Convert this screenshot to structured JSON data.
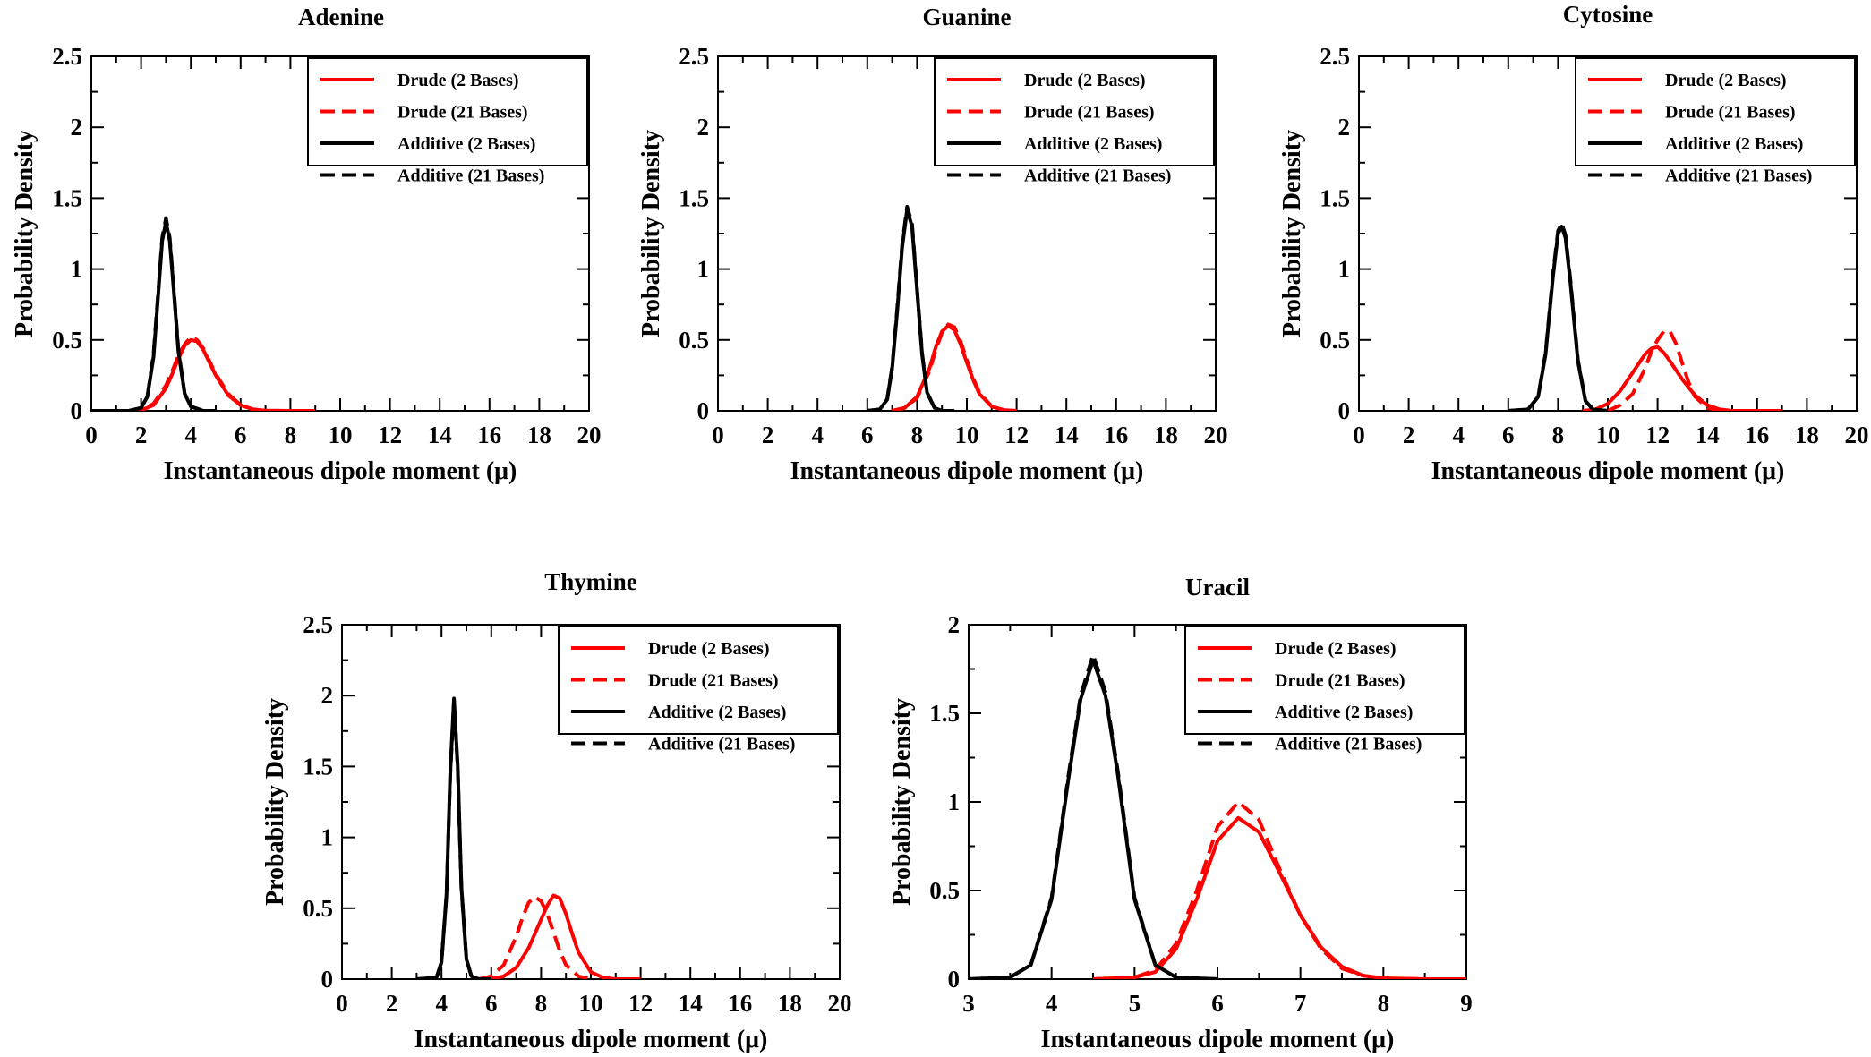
{
  "chart_data": [
    {
      "type": "line",
      "title": "Adenine",
      "xlabel": "Instantaneous dipole moment (μ)",
      "ylabel": "Probability Density",
      "xlim": [
        0,
        20
      ],
      "ylim": [
        0,
        2.5
      ],
      "xticks": [
        "0",
        "2",
        "4",
        "6",
        "8",
        "10",
        "12",
        "14",
        "16",
        "18",
        "20"
      ],
      "yticks": [
        "0",
        "0.5",
        "1",
        "1.5",
        "2",
        "2.5"
      ],
      "legend": "top-right",
      "series": [
        {
          "name": "Drude (2 Bases)",
          "color": "#ff0000",
          "style": "solid",
          "x": [
            1.5,
            2,
            2.5,
            3,
            3.25,
            3.5,
            3.75,
            4,
            4.25,
            4.5,
            4.75,
            5,
            5.5,
            6,
            6.5,
            7,
            8,
            9
          ],
          "y": [
            0,
            0.003,
            0.04,
            0.16,
            0.26,
            0.37,
            0.46,
            0.5,
            0.49,
            0.43,
            0.34,
            0.25,
            0.11,
            0.04,
            0.01,
            0.002,
            0,
            0
          ]
        },
        {
          "name": "Drude (21 Bases)",
          "color": "#ff0000",
          "style": "dashed",
          "x": [
            1.5,
            2,
            2.5,
            3,
            3.25,
            3.5,
            3.75,
            4,
            4.25,
            4.5,
            4.75,
            5,
            5.5,
            6,
            6.5,
            7,
            8
          ],
          "y": [
            0,
            0.005,
            0.05,
            0.18,
            0.28,
            0.39,
            0.47,
            0.52,
            0.5,
            0.44,
            0.35,
            0.26,
            0.12,
            0.04,
            0.01,
            0.002,
            0
          ]
        },
        {
          "name": "Additive (2 Bases)",
          "color": "#000000",
          "style": "solid",
          "x": [
            0,
            1.5,
            2,
            2.25,
            2.5,
            2.7,
            2.85,
            3,
            3.15,
            3.3,
            3.5,
            3.75,
            4,
            4.5,
            5
          ],
          "y": [
            0,
            0,
            0.02,
            0.1,
            0.38,
            0.85,
            1.2,
            1.33,
            1.2,
            0.88,
            0.42,
            0.12,
            0.03,
            0,
            0
          ]
        },
        {
          "name": "Additive (21 Bases)",
          "color": "#000000",
          "style": "dashed",
          "x": [
            0,
            1.5,
            2,
            2.25,
            2.5,
            2.7,
            2.85,
            3,
            3.15,
            3.3,
            3.5,
            3.75,
            4,
            4.5,
            5
          ],
          "y": [
            0,
            0,
            0.02,
            0.1,
            0.4,
            0.87,
            1.22,
            1.36,
            1.22,
            0.9,
            0.43,
            0.12,
            0.03,
            0,
            0
          ]
        }
      ]
    },
    {
      "type": "line",
      "title": "Guanine",
      "xlabel": "Instantaneous dipole moment (μ)",
      "ylabel": "Probability Density",
      "xlim": [
        0,
        20
      ],
      "ylim": [
        0,
        2.5
      ],
      "xticks": [
        "0",
        "2",
        "4",
        "6",
        "8",
        "10",
        "12",
        "14",
        "16",
        "18",
        "20"
      ],
      "yticks": [
        "0",
        "0.5",
        "1",
        "1.5",
        "2",
        "2.5"
      ],
      "legend": "top-right",
      "series": [
        {
          "name": "Drude (2 Bases)",
          "color": "#ff0000",
          "style": "solid",
          "x": [
            7,
            7.5,
            8,
            8.5,
            8.75,
            9,
            9.25,
            9.5,
            9.75,
            10,
            10.25,
            10.5,
            11,
            11.5,
            12
          ],
          "y": [
            0,
            0.02,
            0.1,
            0.3,
            0.45,
            0.56,
            0.6,
            0.57,
            0.47,
            0.34,
            0.22,
            0.12,
            0.03,
            0.005,
            0
          ]
        },
        {
          "name": "Drude (21 Bases)",
          "color": "#ff0000",
          "style": "dashed",
          "x": [
            7,
            7.5,
            8,
            8.5,
            8.75,
            9,
            9.25,
            9.5,
            9.75,
            10,
            10.25,
            10.5,
            11,
            11.5,
            12
          ],
          "y": [
            0,
            0.02,
            0.09,
            0.28,
            0.43,
            0.55,
            0.61,
            0.59,
            0.49,
            0.36,
            0.23,
            0.13,
            0.03,
            0.005,
            0
          ]
        },
        {
          "name": "Additive (2 Bases)",
          "color": "#000000",
          "style": "solid",
          "x": [
            6,
            6.5,
            6.8,
            7,
            7.2,
            7.4,
            7.6,
            7.8,
            8,
            8.2,
            8.4,
            8.7,
            9,
            9.5
          ],
          "y": [
            0,
            0.01,
            0.08,
            0.3,
            0.7,
            1.15,
            1.42,
            1.3,
            0.85,
            0.4,
            0.13,
            0.02,
            0,
            0
          ]
        },
        {
          "name": "Additive (21 Bases)",
          "color": "#000000",
          "style": "dashed",
          "x": [
            6,
            6.5,
            6.8,
            7,
            7.2,
            7.4,
            7.6,
            7.8,
            8,
            8.2,
            8.4,
            8.7,
            9,
            9.5
          ],
          "y": [
            0,
            0.01,
            0.08,
            0.31,
            0.72,
            1.17,
            1.44,
            1.32,
            0.86,
            0.41,
            0.13,
            0.02,
            0,
            0
          ]
        }
      ]
    },
    {
      "type": "line",
      "title": "Cytosine",
      "xlabel": "Instantaneous dipole moment (μ)",
      "ylabel": "Probability Density",
      "xlim": [
        0,
        20
      ],
      "ylim": [
        0,
        2.5
      ],
      "xticks": [
        "0",
        "2",
        "4",
        "6",
        "8",
        "10",
        "12",
        "14",
        "16",
        "18",
        "20"
      ],
      "yticks": [
        "0",
        "0.5",
        "1",
        "1.5",
        "2",
        "2.5"
      ],
      "legend": "top-right",
      "series": [
        {
          "name": "Drude (2 Bases)",
          "color": "#ff0000",
          "style": "solid",
          "x": [
            9,
            9.5,
            10,
            10.5,
            11,
            11.5,
            11.75,
            12,
            12.25,
            12.5,
            13,
            13.5,
            14,
            14.5,
            15,
            16,
            17
          ],
          "y": [
            0,
            0.01,
            0.05,
            0.14,
            0.27,
            0.4,
            0.44,
            0.45,
            0.41,
            0.35,
            0.22,
            0.11,
            0.04,
            0.01,
            0,
            0,
            0
          ]
        },
        {
          "name": "Drude (21 Bases)",
          "color": "#ff0000",
          "style": "dashed",
          "x": [
            10,
            10.5,
            11,
            11.5,
            11.75,
            12,
            12.25,
            12.5,
            12.75,
            13,
            13.25,
            13.5,
            14,
            14.5
          ],
          "y": [
            0,
            0.04,
            0.12,
            0.3,
            0.42,
            0.5,
            0.56,
            0.56,
            0.47,
            0.33,
            0.2,
            0.1,
            0.02,
            0
          ]
        },
        {
          "name": "Additive (2 Bases)",
          "color": "#000000",
          "style": "solid",
          "x": [
            6,
            6.8,
            7.2,
            7.5,
            7.8,
            8,
            8.15,
            8.3,
            8.5,
            8.8,
            9.1,
            9.4,
            10
          ],
          "y": [
            0,
            0.01,
            0.1,
            0.4,
            0.95,
            1.25,
            1.3,
            1.22,
            0.9,
            0.35,
            0.07,
            0.01,
            0
          ]
        },
        {
          "name": "Additive (21 Bases)",
          "color": "#000000",
          "style": "dashed",
          "x": [
            6,
            6.8,
            7.2,
            7.5,
            7.8,
            8,
            8.15,
            8.3,
            8.5,
            8.8,
            9.1,
            9.4,
            10
          ],
          "y": [
            0,
            0.01,
            0.1,
            0.41,
            0.97,
            1.27,
            1.32,
            1.24,
            0.92,
            0.36,
            0.07,
            0.01,
            0
          ]
        }
      ]
    },
    {
      "type": "line",
      "title": "Thymine",
      "xlabel": "Instantaneous dipole moment (μ)",
      "ylabel": "Probability Density",
      "xlim": [
        0,
        20
      ],
      "ylim": [
        0,
        2.5
      ],
      "xticks": [
        "0",
        "2",
        "4",
        "6",
        "8",
        "10",
        "12",
        "14",
        "16",
        "18",
        "20"
      ],
      "yticks": [
        "0",
        "0.5",
        "1",
        "1.5",
        "2",
        "2.5"
      ],
      "legend": "top-right",
      "series": [
        {
          "name": "Drude (2 Bases)",
          "color": "#ff0000",
          "style": "solid",
          "x": [
            6,
            6.5,
            7,
            7.5,
            8,
            8.25,
            8.5,
            8.75,
            9,
            9.25,
            9.5,
            10,
            10.5,
            11,
            12
          ],
          "y": [
            0,
            0.02,
            0.08,
            0.22,
            0.42,
            0.52,
            0.59,
            0.57,
            0.46,
            0.32,
            0.19,
            0.05,
            0.01,
            0,
            0
          ]
        },
        {
          "name": "Drude (21 Bases)",
          "color": "#ff0000",
          "style": "dashed",
          "x": [
            5.5,
            6,
            6.5,
            7,
            7.25,
            7.5,
            7.75,
            8,
            8.25,
            8.5,
            8.75,
            9,
            9.5,
            10
          ],
          "y": [
            0,
            0.02,
            0.1,
            0.3,
            0.43,
            0.54,
            0.58,
            0.55,
            0.46,
            0.33,
            0.2,
            0.1,
            0.02,
            0
          ]
        },
        {
          "name": "Additive (2 Bases)",
          "color": "#000000",
          "style": "solid",
          "x": [
            3,
            3.8,
            4,
            4.2,
            4.35,
            4.5,
            4.65,
            4.8,
            5,
            5.2,
            5.5,
            6
          ],
          "y": [
            0,
            0.01,
            0.12,
            0.6,
            1.45,
            1.98,
            1.5,
            0.65,
            0.14,
            0.02,
            0,
            0
          ]
        },
        {
          "name": "Additive (21 Bases)",
          "color": "#000000",
          "style": "dashed",
          "x": [
            3,
            3.8,
            4,
            4.2,
            4.35,
            4.5,
            4.65,
            4.8,
            5,
            5.2,
            5.5,
            6
          ],
          "y": [
            0,
            0.01,
            0.12,
            0.6,
            1.43,
            1.96,
            1.48,
            0.64,
            0.14,
            0.02,
            0,
            0
          ]
        }
      ]
    },
    {
      "type": "line",
      "title": "Uracil",
      "xlabel": "Instantaneous dipole moment (μ)",
      "ylabel": "Probability Density",
      "xlim": [
        3,
        9
      ],
      "ylim": [
        0,
        2
      ],
      "xticks": [
        "3",
        "4",
        "5",
        "6",
        "7",
        "8",
        "9"
      ],
      "yticks": [
        "0",
        "0.5",
        "1",
        "1.5",
        "2"
      ],
      "legend": "top-right",
      "series": [
        {
          "name": "Drude (2 Bases)",
          "color": "#ff0000",
          "style": "solid",
          "x": [
            4.5,
            5,
            5.25,
            5.5,
            5.75,
            6,
            6.25,
            6.5,
            6.75,
            7,
            7.25,
            7.5,
            7.75,
            8,
            8.5,
            9
          ],
          "y": [
            0,
            0.01,
            0.04,
            0.17,
            0.45,
            0.78,
            0.91,
            0.83,
            0.6,
            0.36,
            0.18,
            0.07,
            0.02,
            0.005,
            0,
            0
          ]
        },
        {
          "name": "Drude (21 Bases)",
          "color": "#ff0000",
          "style": "dashed",
          "x": [
            4.5,
            5,
            5.25,
            5.5,
            5.75,
            6,
            6.25,
            6.5,
            6.75,
            7,
            7.25,
            7.5,
            7.75,
            8,
            8.5,
            8.8
          ],
          "y": [
            0,
            0.01,
            0.05,
            0.2,
            0.5,
            0.86,
            1.0,
            0.9,
            0.62,
            0.36,
            0.17,
            0.06,
            0.02,
            0.004,
            0,
            0
          ]
        },
        {
          "name": "Additive (2 Bases)",
          "color": "#000000",
          "style": "solid",
          "x": [
            3,
            3.5,
            3.75,
            4,
            4.2,
            4.35,
            4.5,
            4.65,
            4.8,
            5,
            5.25,
            5.5,
            6
          ],
          "y": [
            0,
            0.01,
            0.08,
            0.45,
            1.12,
            1.58,
            1.8,
            1.6,
            1.15,
            0.45,
            0.08,
            0.01,
            0
          ]
        },
        {
          "name": "Additive (21 Bases)",
          "color": "#000000",
          "style": "dashed",
          "x": [
            3,
            3.5,
            3.75,
            4,
            4.2,
            4.35,
            4.5,
            4.65,
            4.8,
            5,
            5.25,
            5.5,
            6
          ],
          "y": [
            0,
            0.01,
            0.08,
            0.46,
            1.14,
            1.6,
            1.83,
            1.62,
            1.17,
            0.46,
            0.08,
            0.01,
            0
          ]
        }
      ]
    }
  ]
}
